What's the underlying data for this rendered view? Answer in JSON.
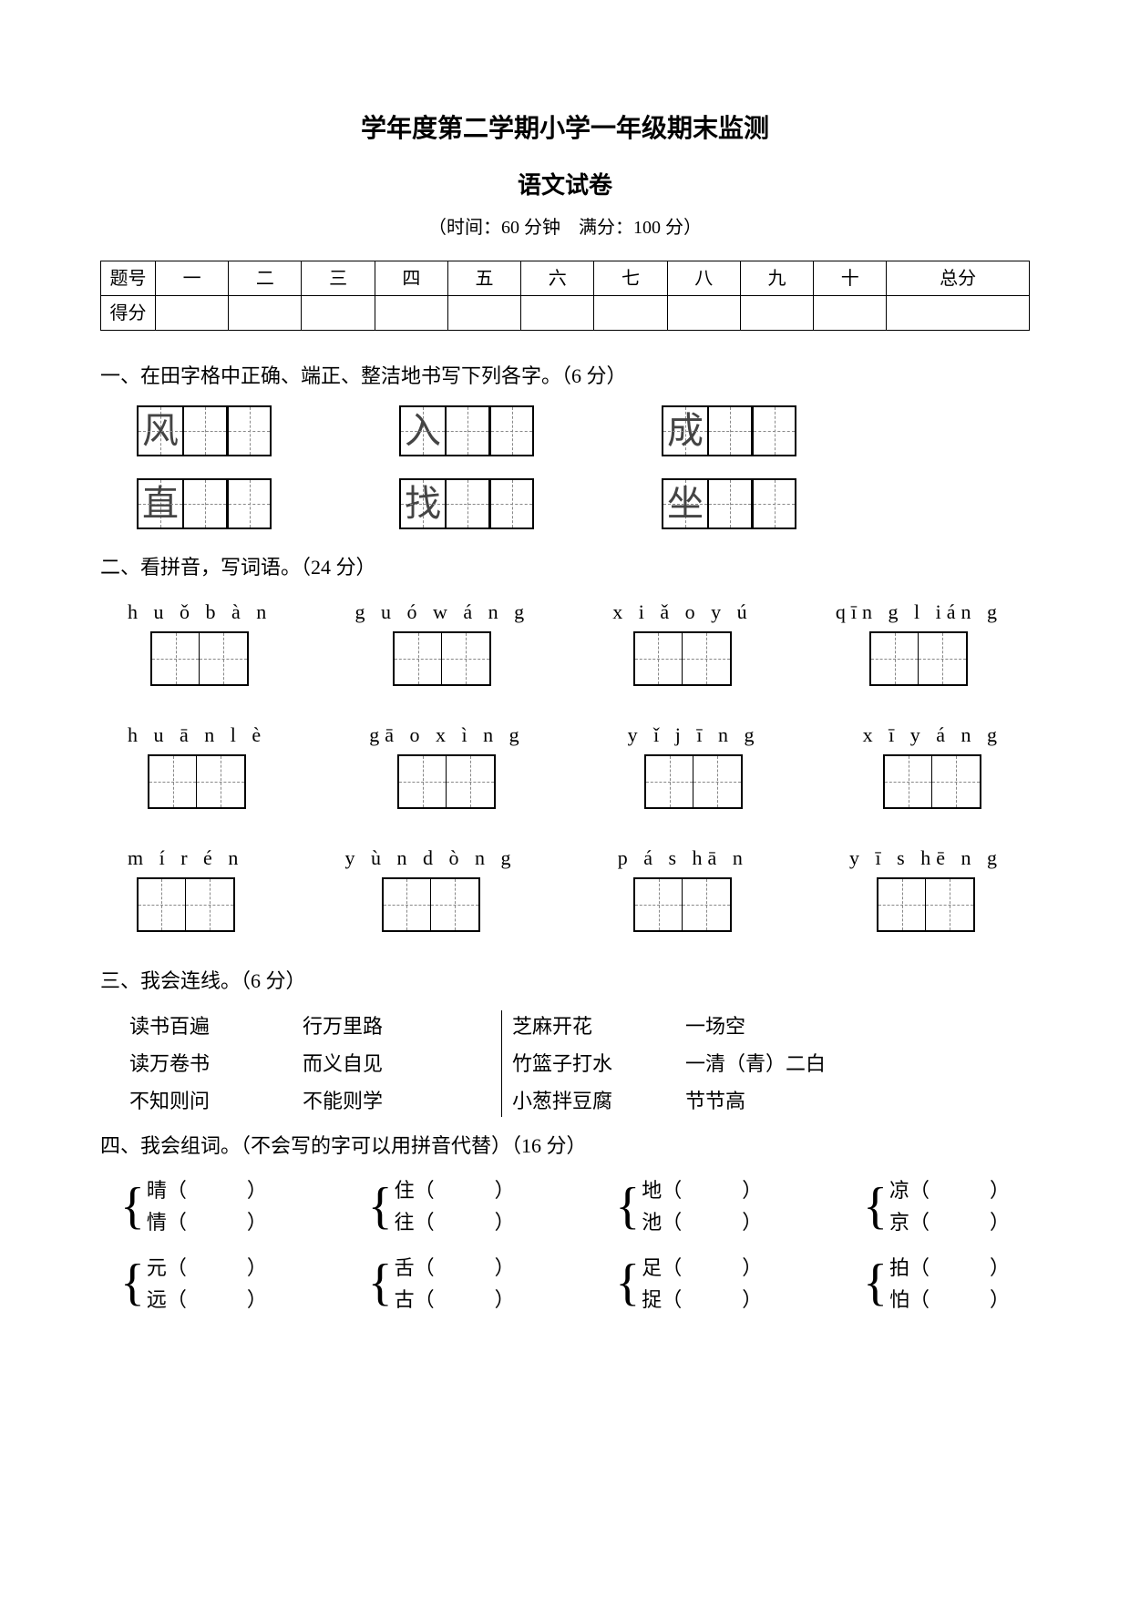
{
  "header": {
    "title1": "学年度第二学期小学一年级期末监测",
    "title2": "语文试卷",
    "meta": "（时间：60 分钟　满分：100 分）"
  },
  "score_table": {
    "row1_label": "题号",
    "cols": [
      "一",
      "二",
      "三",
      "四",
      "五",
      "六",
      "七",
      "八",
      "九",
      "十",
      "总分"
    ],
    "row2_label": "得分"
  },
  "s1": {
    "heading": "一、在田字格中正确、端正、整洁地书写下列各字。（6 分）",
    "row1": [
      "风",
      "入",
      "成"
    ],
    "row2": [
      "直",
      "找",
      "坐"
    ]
  },
  "s2": {
    "heading": "二、看拼音，写词语。（24 分）",
    "rows": [
      [
        "h u ǒ  b à n",
        "g u ó  w á n g",
        "x i ǎ o   y ú",
        "qīn g  l ián g"
      ],
      [
        "h u ā n   l è",
        "gā o   x ì n g",
        "y ǐ   j ī n g",
        "x ī   y á n g"
      ],
      [
        "m í   r é n",
        "y ù n   d ò n g",
        "p á   s hā n",
        "y ī   s hē n g"
      ]
    ]
  },
  "s3": {
    "heading": "三、我会连线。（6 分）",
    "left": [
      [
        "读书百遍",
        "行万里路"
      ],
      [
        "读万卷书",
        "而义自见"
      ],
      [
        "不知则问",
        "不能则学"
      ]
    ],
    "right": [
      [
        "芝麻开花",
        "一场空"
      ],
      [
        "竹篮子打水",
        "一清（青）二白"
      ],
      [
        "小葱拌豆腐",
        "节节高"
      ]
    ]
  },
  "s4": {
    "heading": "四、我会组词。（不会写的字可以用拼音代替）（16 分）",
    "rows": [
      [
        [
          "晴",
          "情"
        ],
        [
          "住",
          "往"
        ],
        [
          "地",
          "池"
        ],
        [
          "凉",
          "京"
        ]
      ],
      [
        [
          "元",
          "远"
        ],
        [
          "舌",
          "古"
        ],
        [
          "足",
          "捉"
        ],
        [
          "拍",
          "怕"
        ]
      ]
    ],
    "paren_open": "（",
    "paren_close": "）"
  },
  "colors": {
    "text": "#000000",
    "bg": "#ffffff",
    "dash": "#888888"
  }
}
